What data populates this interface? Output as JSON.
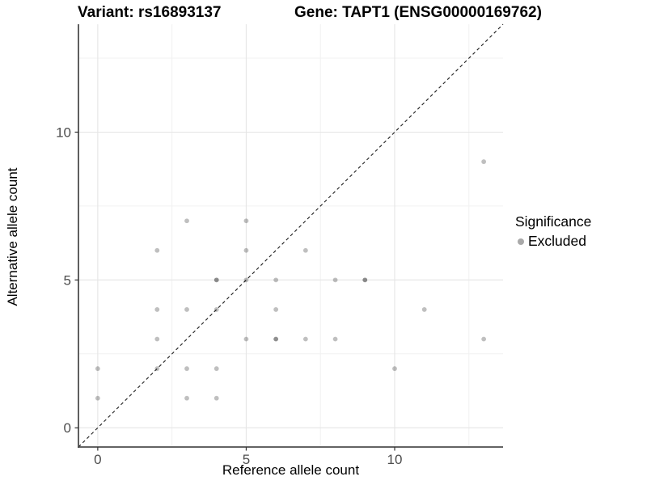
{
  "titles": {
    "variant": "Variant: rs16893137",
    "gene": "Gene: TAPT1 (ENSG00000169762)"
  },
  "legend": {
    "title": "Significance",
    "items": [
      {
        "label": "Excluded",
        "color": "#a9a9a9"
      }
    ]
  },
  "chart_data": {
    "type": "scatter",
    "title": "Variant: rs16893137   Gene: TAPT1 (ENSG00000169762)",
    "xlabel": "Reference allele count",
    "ylabel": "Alternative allele count",
    "xlim": [
      -0.65,
      13.65
    ],
    "ylim": [
      -0.65,
      13.65
    ],
    "x_ticks": [
      0,
      5,
      10
    ],
    "y_ticks": [
      0,
      5,
      10
    ],
    "grid": {
      "major": [
        0,
        5,
        10
      ],
      "minor": [
        2.5,
        7.5,
        12.5
      ],
      "major_color": "#e5e5e5",
      "minor_color": "#f1f1f1"
    },
    "legend_position": "right",
    "identity_line": {
      "type": "abline y=x",
      "style": "dashed",
      "color": "#1a1a1a"
    },
    "point_style": {
      "radius": 2.9,
      "rgba": "rgba(0,0,0,0.25)"
    },
    "axis_colors": {
      "line": "#4d4d4d",
      "tick": "#333333",
      "tick_label": "#4d4d4d"
    },
    "series": [
      {
        "name": "Excluded",
        "points": [
          {
            "x": 0,
            "y": 1,
            "n": 1
          },
          {
            "x": 0,
            "y": 2,
            "n": 1
          },
          {
            "x": 2,
            "y": 2,
            "n": 1
          },
          {
            "x": 2,
            "y": 3,
            "n": 1
          },
          {
            "x": 2,
            "y": 4,
            "n": 1
          },
          {
            "x": 2,
            "y": 6,
            "n": 1
          },
          {
            "x": 3,
            "y": 1,
            "n": 1
          },
          {
            "x": 3,
            "y": 2,
            "n": 1
          },
          {
            "x": 3,
            "y": 4,
            "n": 1
          },
          {
            "x": 3,
            "y": 7,
            "n": 1
          },
          {
            "x": 4,
            "y": 1,
            "n": 1
          },
          {
            "x": 4,
            "y": 2,
            "n": 1
          },
          {
            "x": 4,
            "y": 4,
            "n": 1
          },
          {
            "x": 4,
            "y": 5,
            "n": 2
          },
          {
            "x": 5,
            "y": 3,
            "n": 1
          },
          {
            "x": 5,
            "y": 5,
            "n": 1
          },
          {
            "x": 5,
            "y": 6,
            "n": 1
          },
          {
            "x": 5,
            "y": 7,
            "n": 1
          },
          {
            "x": 6,
            "y": 3,
            "n": 2
          },
          {
            "x": 6,
            "y": 4,
            "n": 1
          },
          {
            "x": 6,
            "y": 5,
            "n": 1
          },
          {
            "x": 7,
            "y": 3,
            "n": 1
          },
          {
            "x": 7,
            "y": 6,
            "n": 1
          },
          {
            "x": 8,
            "y": 3,
            "n": 1
          },
          {
            "x": 8,
            "y": 5,
            "n": 1
          },
          {
            "x": 9,
            "y": 5,
            "n": 2
          },
          {
            "x": 10,
            "y": 2,
            "n": 1
          },
          {
            "x": 11,
            "y": 4,
            "n": 1
          },
          {
            "x": 13,
            "y": 3,
            "n": 1
          },
          {
            "x": 13,
            "y": 9,
            "n": 1
          }
        ]
      }
    ]
  }
}
